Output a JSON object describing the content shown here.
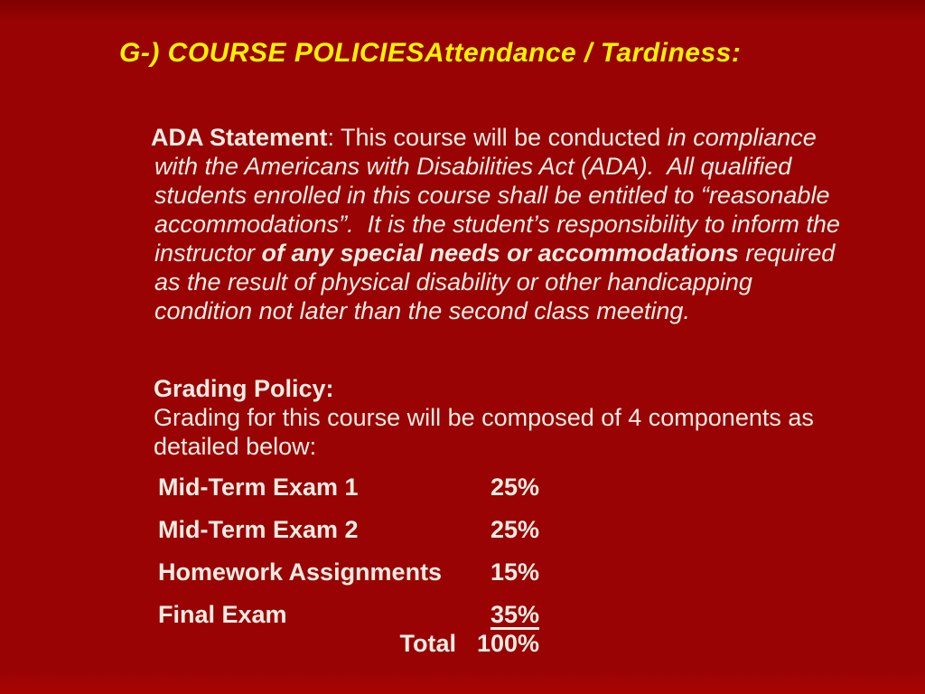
{
  "slide": {
    "title": "G-) COURSE POLICIESAttendance / Tardiness:",
    "colors": {
      "background": "#990303",
      "title_text": "#fff101",
      "body_text": "#f2ece2"
    },
    "ada_paragraph": {
      "lines": [
        [
          {
            "t": "ADA Statement",
            "s": "b"
          },
          {
            "t": ": This course will be conducted ",
            "s": "r"
          },
          {
            "t": "in compliance",
            "s": "i"
          }
        ],
        [
          {
            "t": "with the Americans with Disabilities Act (ADA).  All qualified",
            "s": "i"
          }
        ],
        [
          {
            "t": "students enrolled in this course shall be entitled to “reasonable",
            "s": "i"
          }
        ],
        [
          {
            "t": "accommodations”.  It is the student’s responsibility to inform the",
            "s": "i"
          }
        ],
        [
          {
            "t": "instructor ",
            "s": "i"
          },
          {
            "t": "of any special needs or accommodations",
            "s": "bi"
          },
          {
            "t": " required",
            "s": "i"
          }
        ],
        [
          {
            "t": "as the result of physical disability or other handicapping",
            "s": "i"
          }
        ],
        [
          {
            "t": "condition not later than the second class meeting.",
            "s": "i"
          }
        ]
      ]
    },
    "grading_policy": {
      "lines": [
        [
          {
            "t": "Grading Policy:",
            "s": "b"
          }
        ],
        [
          {
            "t": "Grading for this course will be composed of 4 components as",
            "s": "r"
          }
        ],
        [
          {
            "t": "detailed below:",
            "s": "r"
          }
        ]
      ]
    },
    "grading_table": {
      "rows": [
        {
          "label": "Mid-Term Exam 1",
          "value": "25%",
          "underline": false
        },
        {
          "label": "Mid-Term Exam 2",
          "value": "25%",
          "underline": false
        },
        {
          "label": "Homework Assignments",
          "value": "15%",
          "underline": false
        },
        {
          "label": "Final Exam",
          "value": "35%",
          "underline": true
        }
      ],
      "total_label": "Total",
      "total_value": "100%"
    }
  }
}
